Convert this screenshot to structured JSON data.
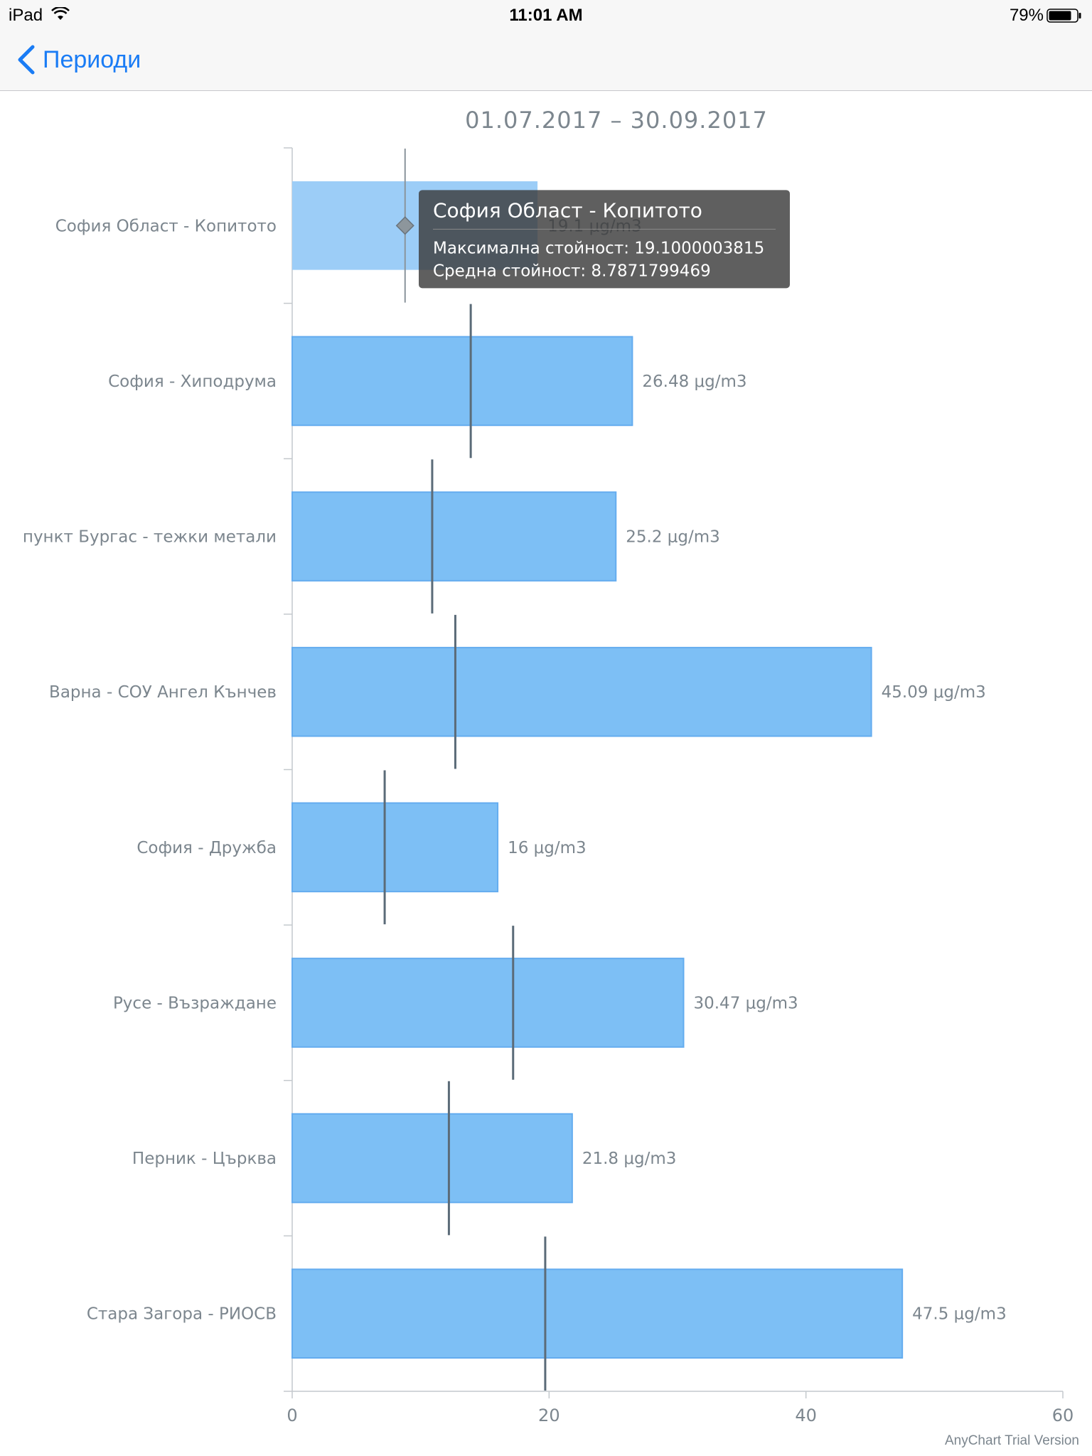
{
  "status_bar": {
    "device": "iPad",
    "time": "11:01 AM",
    "battery": "79%"
  },
  "nav": {
    "back_label": "Периоди"
  },
  "chart_data": {
    "type": "bar",
    "orientation": "horizontal",
    "title": "01.07.2017 – 30.09.2017",
    "categories": [
      "София Област - Копитото",
      "София - Хиподрума",
      "пункт Бургас - тежки метали",
      "Варна - СОУ Ангел Кънчев",
      "София - Дружба",
      "Русе - Възраждане",
      "Перник - Църква",
      "Стара Загора - РИОСВ"
    ],
    "series": [
      {
        "name": "Максимална стойност",
        "type": "bar",
        "values": [
          19.1,
          26.48,
          25.2,
          45.09,
          16,
          30.47,
          21.8,
          47.5
        ],
        "labels": [
          "19.1 μg/m3",
          "26.48 μg/m3",
          "25.2 μg/m3",
          "45.09 μg/m3",
          "16 μg/m3",
          "30.47 μg/m3",
          "21.8 μg/m3",
          "47.5 μg/m3"
        ]
      },
      {
        "name": "Средна стойност",
        "type": "marker",
        "values": [
          8.7871799469,
          13.9,
          10.9,
          12.7,
          7.2,
          17.2,
          12.2,
          19.7
        ]
      }
    ],
    "xlim": [
      0,
      60
    ],
    "ticks": [
      "0",
      "20",
      "40",
      "60"
    ],
    "grid": false,
    "colors": {
      "bar": "#7dbff5",
      "bar_hover": "#9ccdf7",
      "bar_border": "#64acef",
      "marker": "#5b6b78",
      "text": "#7c868e"
    },
    "highlight_index": 0,
    "tooltip": {
      "title": "София Област - Копитото",
      "lines": [
        "Максимална стойност: 19.1000003815",
        "Средна стойност: 8.7871799469"
      ]
    },
    "credit": "AnyChart Trial Version"
  }
}
